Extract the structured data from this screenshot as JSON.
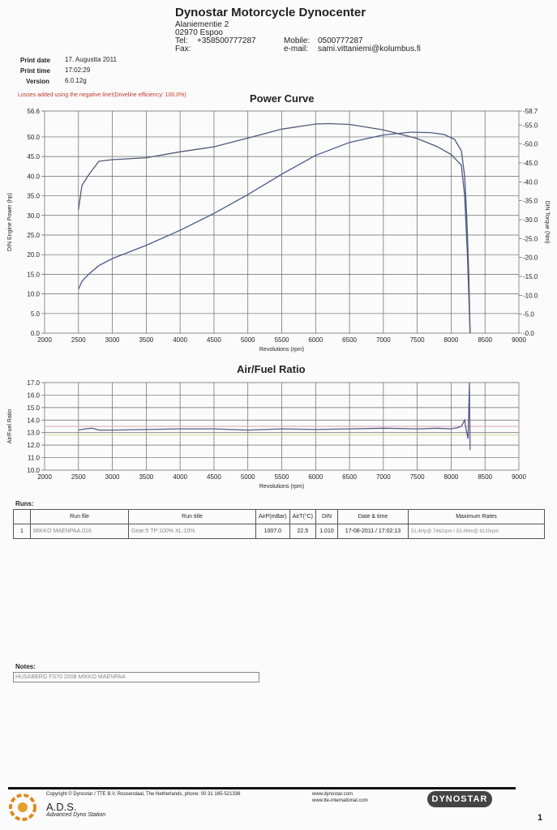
{
  "header": {
    "company": "Dynostar Motorcycle Dynocenter",
    "street": "Alaniementie 2",
    "city": "02970  Espoo",
    "tel_label": "Tel:",
    "tel": "+358500777287",
    "fax_label": "Fax:",
    "mobile_label": "Mobile:",
    "mobile": "0500777287",
    "email_label": "e-mail:",
    "email": "sami.vittaniemi@kolumbus.fi"
  },
  "print_info": {
    "date_label": "Print date",
    "date": "17. Augustta 2011",
    "time_label": "Print time",
    "time": "17:02:29",
    "version_label": "Version",
    "version": "6.0.12g"
  },
  "losses_note": "Losses added using the negative line!(Driveline efficiency: 100.0%)",
  "chart_data": [
    {
      "type": "line",
      "title": "Power Curve",
      "xlabel": "Revolutions (rpm)",
      "ylabel": "DIN Engine Power (hp)",
      "y2label": "DIN Torque (Nm)",
      "xlim": [
        2000,
        9000
      ],
      "ylim": [
        0,
        56.6
      ],
      "y2lim": [
        0,
        58.7
      ],
      "x_ticks": [
        2000,
        2500,
        3000,
        3500,
        4000,
        4500,
        5000,
        5500,
        6000,
        6500,
        7000,
        7500,
        8000,
        8500,
        9000
      ],
      "y_ticks": [
        "0.0",
        "5.0",
        "10.0",
        "15.0",
        "20.0",
        "25.0",
        "30.0",
        "35.0",
        "40.0",
        "45.0",
        "50.0",
        "56.6"
      ],
      "y2_ticks": [
        "0.0",
        "5.0",
        "10.0",
        "15.0",
        "20.0",
        "25.0",
        "30.0",
        "35.0",
        "40.0",
        "45.0",
        "50.0",
        "55.0",
        "58.7"
      ],
      "grid": true,
      "series": [
        {
          "color": "#4a5a88",
          "x": [
            2500,
            2550,
            2650,
            2800,
            3000,
            3500,
            4000,
            4500,
            5000,
            5500,
            6000,
            6500,
            7000,
            7400,
            7700,
            7900,
            8050,
            8150,
            8200,
            8230,
            8260,
            8280
          ],
          "y": [
            11.2,
            13.2,
            15.0,
            17.2,
            19.0,
            22.4,
            26.2,
            30.5,
            35.3,
            40.5,
            45.3,
            48.6,
            50.5,
            51.2,
            51.1,
            50.6,
            49.4,
            46.5,
            40.0,
            30.0,
            15.0,
            0.0
          ]
        },
        {
          "color": "#505a78",
          "x": [
            2500,
            2550,
            2650,
            2800,
            3000,
            3500,
            4000,
            4500,
            5000,
            5500,
            6000,
            6200,
            6500,
            7000,
            7500,
            7800,
            8000,
            8150,
            8200,
            8240,
            8270,
            8280
          ],
          "y": [
            31.5,
            37.6,
            40.3,
            43.8,
            44.2,
            44.7,
            46.2,
            47.5,
            49.7,
            52.0,
            53.3,
            53.4,
            53.2,
            51.8,
            49.6,
            47.5,
            45.5,
            42.8,
            35.0,
            20.0,
            5.0,
            0.0
          ]
        }
      ]
    },
    {
      "type": "line",
      "title": "Air/Fuel Ratio",
      "xlabel": "Revolutions (rpm)",
      "ylabel": "Air/Fuel Ratio",
      "xlim": [
        2000,
        9000
      ],
      "ylim": [
        10.0,
        17.0
      ],
      "x_ticks": [
        2000,
        2500,
        3000,
        3500,
        4000,
        4500,
        5000,
        5500,
        6000,
        6500,
        7000,
        7500,
        8000,
        8500,
        9000
      ],
      "y_ticks": [
        "10.0",
        "11.0",
        "12.0",
        "13.0",
        "14.0",
        "15.0",
        "16.0",
        "17.0"
      ],
      "grid": true,
      "reference_lines": [
        {
          "color": "#d9a6b0",
          "y": 13.5
        },
        {
          "color": "#d7d9a0",
          "y": 12.8
        }
      ],
      "series": [
        {
          "color": "#5a5a8a",
          "x": [
            2500,
            2600,
            2700,
            2800,
            3000,
            3500,
            4000,
            4500,
            5000,
            5500,
            6000,
            6500,
            7000,
            7500,
            7800,
            8000,
            8100,
            8150,
            8200,
            8220,
            8250,
            8270,
            8280
          ],
          "y": [
            13.2,
            13.3,
            13.35,
            13.2,
            13.2,
            13.25,
            13.3,
            13.3,
            13.2,
            13.3,
            13.25,
            13.3,
            13.35,
            13.3,
            13.35,
            13.3,
            13.4,
            13.5,
            14.0,
            13.3,
            12.5,
            17.0,
            11.6
          ]
        }
      ]
    }
  ],
  "runs": {
    "label": "Runs:",
    "headers": [
      "Run file",
      "Run title",
      "AirP(mBar)",
      "AirT(°C)",
      "DIN",
      "Date & time",
      "Maximum Rates"
    ],
    "rows": [
      {
        "index": "1",
        "file": "MIKKO MAENPAA.016",
        "title": "Gear:5 TP:100% XL:10%",
        "airp": "1007.0",
        "airt": "22.5",
        "din": "1.010",
        "datetime": "17-08-2011 / 17:02:13",
        "maxrates": "51.4Hp@ 7462rpm / 53.4Nm@ 6123rpm"
      }
    ]
  },
  "notes": {
    "label": "Notes:",
    "text": "HUSABERG FS70  2008 MIKKO MAENPAA"
  },
  "footer": {
    "copyright": "Copyright ©  Dynostar / TTE B.V. Roosendaal, The Netherlands, phone: 00 31 165-521336",
    "ads_title": "A.D.S.",
    "ads_sub": "Advanced Dyno Station",
    "web1": "www.dynostar.com",
    "web2": "www.tte-international.com",
    "brand": "DYNOSTAR",
    "page_number": "1"
  },
  "colors": {
    "grid": "#555555",
    "power_line": "#4a5a88",
    "torque_line": "#505a78",
    "afr_line": "#5a5a8a"
  }
}
